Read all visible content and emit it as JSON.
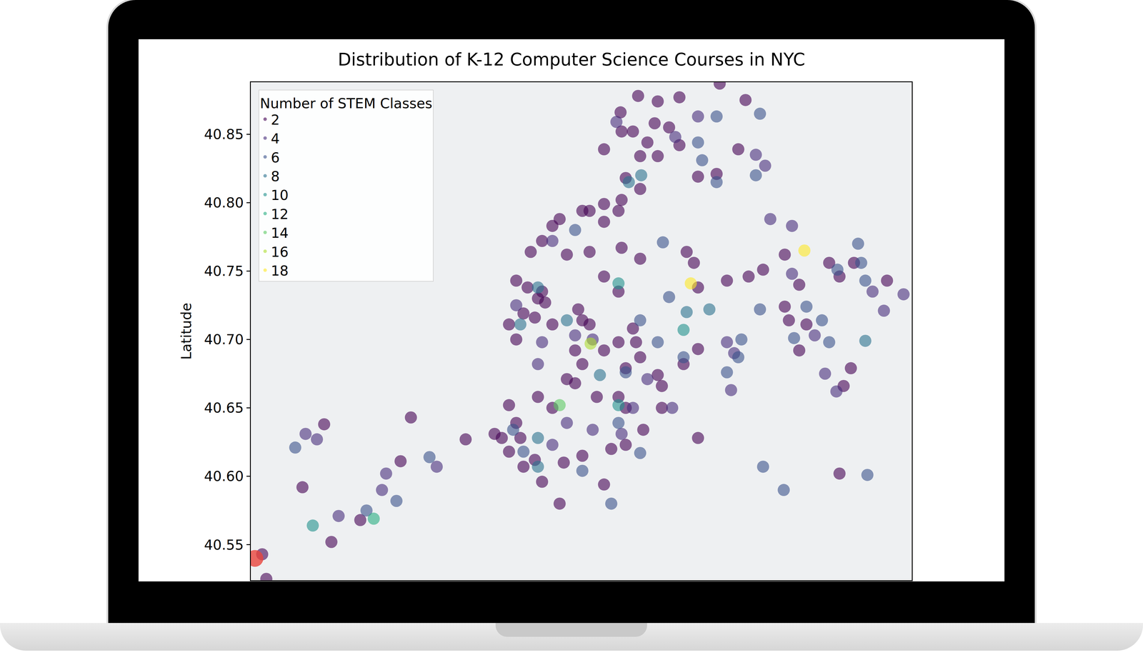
{
  "chart_data": {
    "type": "scatter",
    "title": "Distribution of K-12 Computer Science Courses in NYC",
    "y_label": "Latitude",
    "legend_title": "Number of STEM Classes",
    "legend": "upper left",
    "grid": false,
    "tick_labels": "y",
    "marker": "circle",
    "xlim": [
      -74.26,
      -73.62
    ],
    "ylim": [
      40.524,
      40.888
    ],
    "yticks": [
      40.55,
      {
        "value": 40.6,
        "label": "40.60"
      },
      40.65,
      {
        "value": 40.7,
        "label": "40.70"
      },
      40.75,
      {
        "value": 40.8,
        "label": "40.80"
      },
      40.85
    ],
    "series": [
      {
        "name": "2",
        "color": "#440154",
        "x": [
          -73.885,
          -73.902,
          -73.866,
          -73.845,
          -73.89,
          -73.876,
          -73.855,
          -73.845,
          -73.866,
          -73.883,
          -73.897,
          -73.883,
          -73.809,
          -73.788,
          -73.918,
          -73.901,
          -73.827,
          -73.869,
          -73.806,
          -73.781,
          -73.918,
          -73.939,
          -73.961,
          -73.968,
          -73.918,
          -73.901,
          -73.978,
          -73.989,
          -73.954,
          -73.932,
          -73.932,
          -73.904,
          -74.003,
          -73.992,
          -73.982,
          -73.996,
          -73.985,
          -74.01,
          -74.003,
          -73.968,
          -73.978,
          -73.975,
          -73.943,
          -73.939,
          -73.932,
          -73.918,
          -73.904,
          -73.901,
          -73.883,
          -73.838,
          -73.831,
          -73.827,
          -73.799,
          -73.778,
          -73.764,
          -73.743,
          -73.729,
          -73.743,
          -73.739,
          -73.722,
          -73.7,
          -73.69,
          -73.676,
          -73.644,
          -73.729,
          -73.679,
          -73.686,
          -73.69,
          -73.946,
          -73.939,
          -73.954,
          -73.946,
          -73.918,
          -73.904,
          -73.89,
          -73.887,
          -73.883,
          -73.866,
          -73.862,
          -73.841,
          -73.827,
          -73.897,
          -73.904,
          -73.925,
          -73.897,
          -73.88,
          -73.862,
          -73.827,
          -73.968,
          -73.982,
          -74.01,
          -74.003,
          -73.999,
          -74.017,
          -74.024,
          -74.052,
          -73.985,
          -73.996,
          -73.978,
          -73.961,
          -73.918,
          -73.911,
          -73.939,
          -73.897,
          -73.957,
          -74.01,
          -74.189,
          -74.105,
          -74.115,
          -74.21,
          -74.154,
          -74.249,
          -74.182,
          -74.245
        ],
        "y": [
          40.878,
          40.866,
          40.874,
          40.877,
          40.852,
          40.844,
          40.855,
          40.842,
          40.834,
          40.834,
          40.818,
          40.81,
          40.821,
          40.839,
          40.839,
          40.852,
          40.819,
          40.858,
          40.887,
          40.875,
          40.799,
          40.794,
          40.788,
          40.783,
          40.786,
          40.802,
          40.772,
          40.764,
          40.762,
          40.764,
          40.794,
          40.794,
          40.743,
          40.738,
          40.73,
          40.719,
          40.716,
          40.711,
          40.7,
          40.711,
          40.735,
          40.727,
          40.722,
          40.714,
          40.711,
          40.746,
          40.735,
          40.767,
          40.759,
          40.764,
          40.756,
          40.738,
          40.743,
          40.746,
          40.751,
          40.762,
          40.74,
          40.724,
          40.714,
          40.711,
          40.756,
          40.746,
          40.756,
          40.743,
          40.692,
          40.679,
          40.666,
          40.602,
          40.692,
          40.682,
          40.671,
          40.668,
          40.692,
          40.698,
          40.708,
          40.698,
          40.687,
          40.674,
          40.666,
          40.682,
          40.693,
          40.679,
          40.658,
          40.658,
          40.65,
          40.634,
          40.65,
          40.628,
          40.65,
          40.658,
          40.652,
          40.639,
          40.628,
          40.628,
          40.631,
          40.627,
          40.612,
          40.607,
          40.596,
          40.58,
          40.594,
          40.62,
          40.615,
          40.623,
          40.61,
          40.618,
          40.638,
          40.643,
          40.611,
          40.592,
          40.568,
          40.543,
          40.552,
          40.525
        ]
      },
      {
        "name": "4",
        "color": "#472d7b",
        "x": [
          -73.906,
          -73.849,
          -73.771,
          -73.762,
          -73.827,
          -73.968,
          -74.003,
          -73.978,
          -73.946,
          -73.929,
          -73.89,
          -73.901,
          -73.929,
          -73.968,
          -73.954,
          -73.852,
          -73.714,
          -73.693,
          -73.704,
          -73.658,
          -73.628,
          -73.647,
          -73.736,
          -73.757,
          -73.736,
          -73.799,
          -73.795,
          -73.792,
          -73.876,
          -74.129,
          -74.133,
          -74.08,
          -74.175,
          -74.207,
          -74.196,
          -73.982
        ],
        "y": [
          40.859,
          40.848,
          40.835,
          40.827,
          40.863,
          40.772,
          40.725,
          40.698,
          40.703,
          40.7,
          40.65,
          40.631,
          40.634,
          40.623,
          40.639,
          40.65,
          40.703,
          40.662,
          40.675,
          40.735,
          40.733,
          40.721,
          40.783,
          40.788,
          40.748,
          40.698,
          40.663,
          40.69,
          40.671,
          40.602,
          40.59,
          40.607,
          40.571,
          40.631,
          40.627,
          40.682
        ]
      },
      {
        "name": "6",
        "color": "#3b528b",
        "x": [
          -73.767,
          -73.771,
          -73.809,
          -73.823,
          -73.809,
          -73.946,
          -73.883,
          -73.866,
          -73.841,
          -73.785,
          -73.799,
          -73.707,
          -73.7,
          -73.672,
          -73.734,
          -73.767,
          -73.722,
          -73.669,
          -73.788,
          -73.855,
          -73.861,
          -73.939,
          -73.911,
          -73.883,
          -73.904,
          -73.897,
          -74.006,
          -73.996,
          -74.087,
          -74.217,
          -74.148,
          -74.119,
          -73.764,
          -73.744,
          -73.663,
          -73.692,
          -73.665,
          -73.827
        ],
        "y": [
          40.865,
          40.82,
          40.815,
          40.831,
          40.863,
          40.78,
          40.714,
          40.698,
          40.687,
          40.7,
          40.676,
          40.714,
          40.698,
          40.77,
          40.701,
          40.722,
          40.724,
          40.756,
          40.687,
          40.731,
          40.771,
          40.604,
          40.58,
          40.617,
          40.639,
          40.676,
          40.634,
          40.618,
          40.614,
          40.621,
          40.575,
          40.582,
          40.607,
          40.59,
          40.601,
          40.751,
          40.743,
          40.844
        ]
      },
      {
        "name": "8",
        "color": "#2c728e",
        "x": [
          -73.882,
          -73.894,
          -73.982,
          -73.999,
          -73.954,
          -73.982,
          -73.982,
          -73.922,
          -73.665,
          -73.838,
          -73.816
        ],
        "y": [
          40.82,
          40.815,
          40.738,
          40.711,
          40.714,
          40.628,
          40.607,
          40.674,
          40.699,
          40.72,
          40.722
        ]
      },
      {
        "name": "10",
        "color": "#21918c",
        "x": [
          -73.904,
          -73.841,
          -73.904,
          -74.2
        ],
        "y": [
          40.741,
          40.707,
          40.652,
          40.564
        ]
      },
      {
        "name": "12",
        "color": "#28ae80",
        "x": [
          -74.141
        ],
        "y": [
          40.569
        ]
      },
      {
        "name": "14",
        "color": "#5ec962",
        "x": [
          -73.961
        ],
        "y": [
          40.652
        ]
      },
      {
        "name": "16",
        "color": "#addc30",
        "x": [
          -73.931
        ],
        "y": [
          40.697
        ]
      },
      {
        "name": "18",
        "color": "#fde725",
        "x": [
          -73.724,
          -73.834
        ],
        "y": [
          40.765,
          40.741
        ]
      },
      {
        "color": "#e8453c",
        "x": [
          -74.256
        ],
        "y": [
          40.54
        ]
      }
    ]
  }
}
